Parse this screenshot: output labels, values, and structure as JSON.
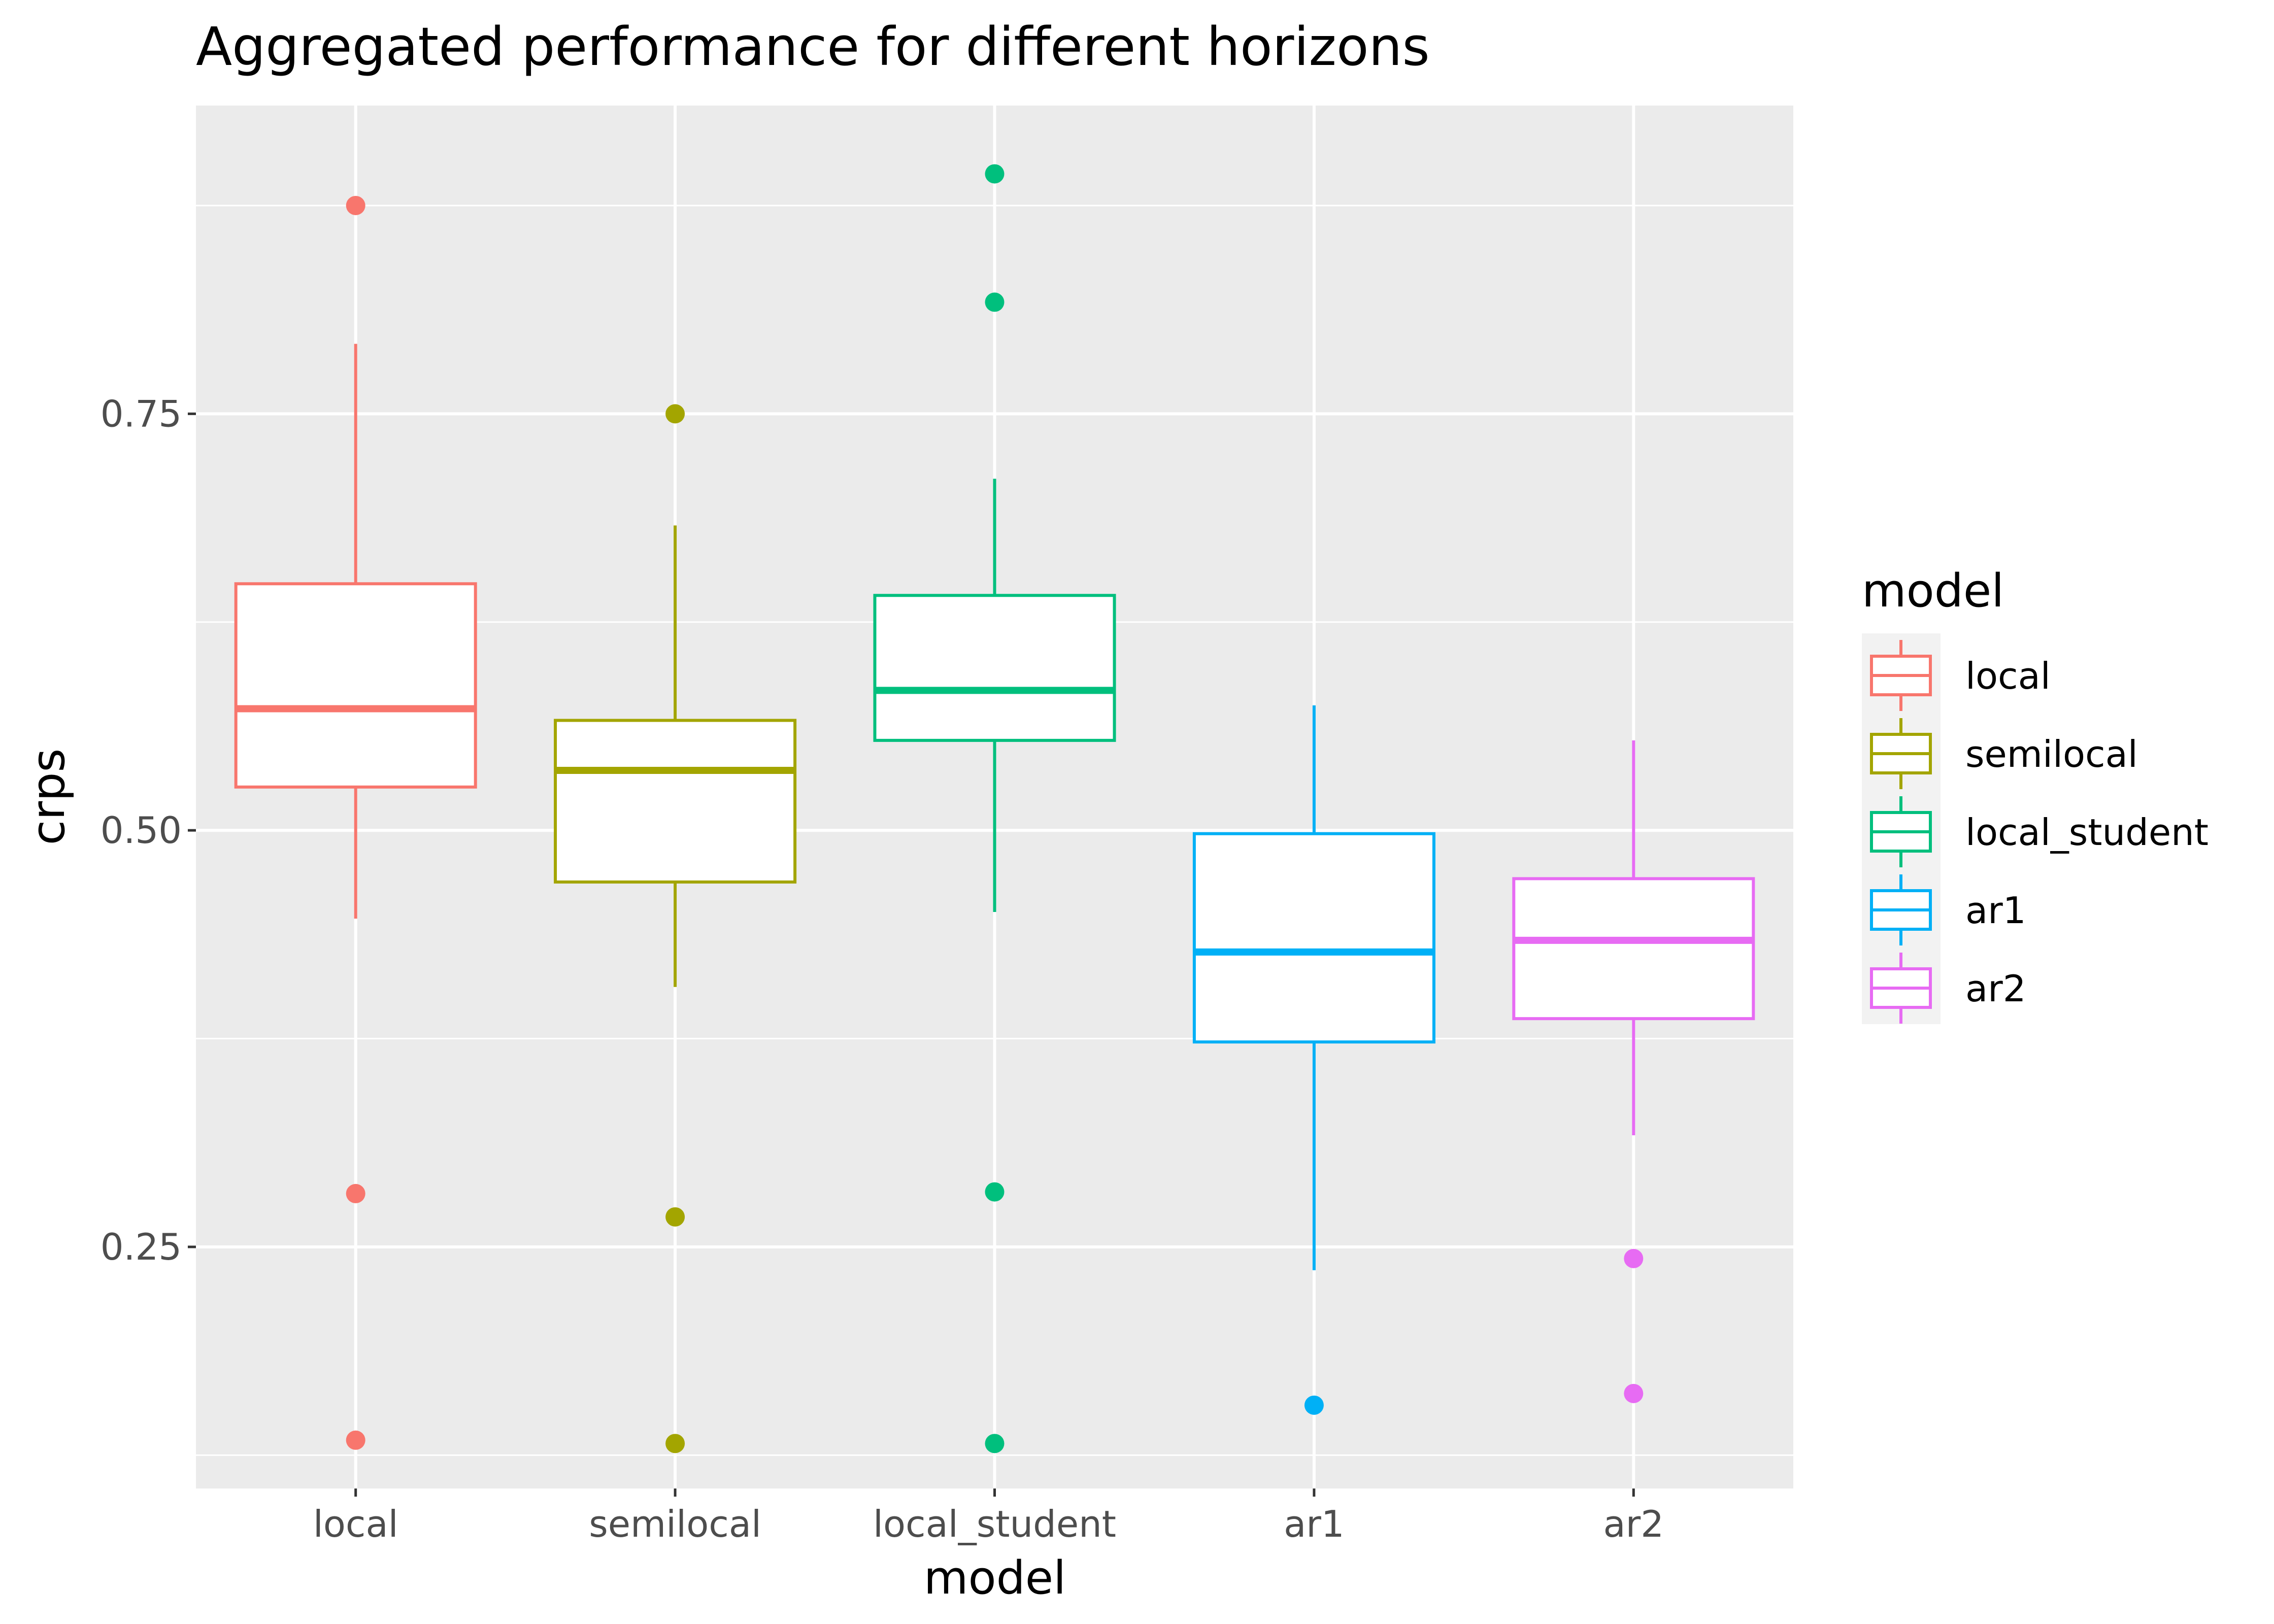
{
  "chart_data": {
    "type": "boxplot",
    "title": "Aggregated performance for different horizons",
    "xlabel": "model",
    "ylabel": "crps",
    "categories": [
      "local",
      "semilocal",
      "local_student",
      "ar1",
      "ar2"
    ],
    "ylim": [
      0.105,
      0.935
    ],
    "yticks": [
      0.25,
      0.5,
      0.75
    ],
    "ytick_labels": [
      "0.25",
      "0.50",
      "0.75"
    ],
    "grid": true,
    "legend": {
      "title": "model",
      "position": "right"
    },
    "series": [
      {
        "name": "local",
        "color": "#F8766D",
        "whisker_low": 0.447,
        "q1": 0.526,
        "median": 0.573,
        "q3": 0.648,
        "whisker_high": 0.792,
        "outliers": [
          0.875,
          0.282,
          0.134
        ]
      },
      {
        "name": "semilocal",
        "color": "#A3A500",
        "whisker_low": 0.406,
        "q1": 0.469,
        "median": 0.536,
        "q3": 0.566,
        "whisker_high": 0.683,
        "outliers": [
          0.75,
          0.268,
          0.132
        ]
      },
      {
        "name": "local_student",
        "color": "#00BF7D",
        "whisker_low": 0.451,
        "q1": 0.554,
        "median": 0.584,
        "q3": 0.641,
        "whisker_high": 0.711,
        "outliers": [
          0.894,
          0.817,
          0.283,
          0.132
        ]
      },
      {
        "name": "ar1",
        "color": "#00B0F6",
        "whisker_low": 0.236,
        "q1": 0.373,
        "median": 0.427,
        "q3": 0.498,
        "whisker_high": 0.575,
        "outliers": [
          0.155
        ]
      },
      {
        "name": "ar2",
        "color": "#E76BF3",
        "whisker_low": 0.317,
        "q1": 0.387,
        "median": 0.434,
        "q3": 0.471,
        "whisker_high": 0.554,
        "outliers": [
          0.243,
          0.162
        ]
      }
    ]
  }
}
